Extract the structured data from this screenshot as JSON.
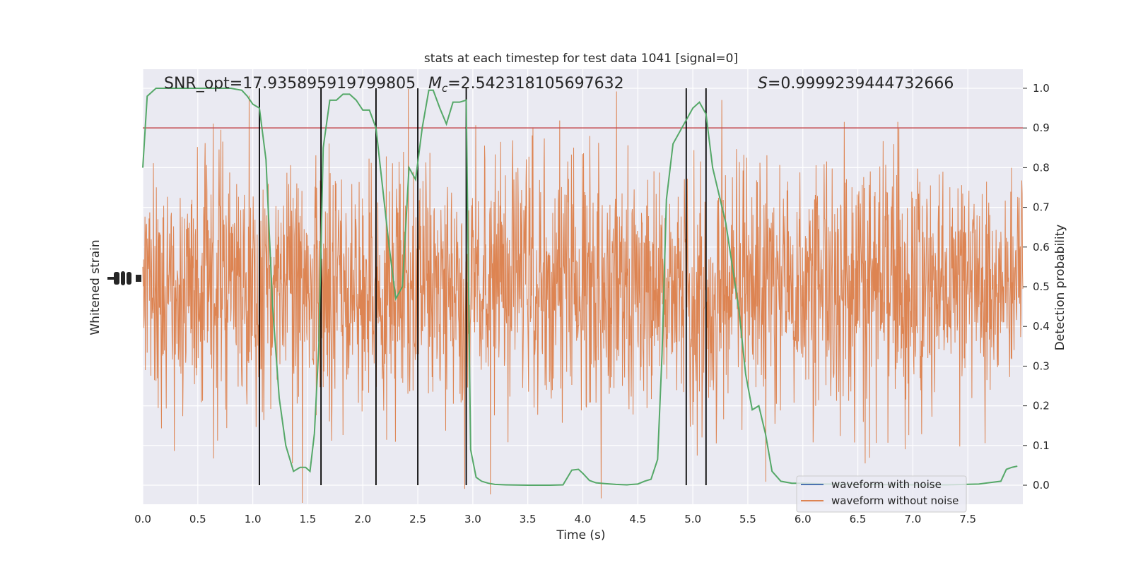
{
  "chart_data": {
    "type": "line",
    "title": "stats at each timestep for test data 1041 [signal=0]",
    "xlabel": "Time (s)",
    "ylabel_left": "Whitened strain",
    "ylabel_right": "Detection probability",
    "xlim": [
      0.0,
      8.0
    ],
    "xticks": [
      "0.0",
      "0.5",
      "1.0",
      "1.5",
      "2.0",
      "2.5",
      "3.0",
      "3.5",
      "4.0",
      "4.5",
      "5.0",
      "5.5",
      "6.0",
      "6.5",
      "7.0",
      "7.5"
    ],
    "ylim_right": [
      -0.048,
      1.048
    ],
    "yticks_right": [
      "0.0",
      "0.1",
      "0.2",
      "0.3",
      "0.4",
      "0.5",
      "0.6",
      "0.7",
      "0.8",
      "0.9",
      "1.0"
    ],
    "threshold": 0.9,
    "annotations": {
      "snr": "SNR_opt=17.935895919799805",
      "mc_symbol": "M",
      "mc_sub": "c",
      "mc_value": "=2.542318105697632",
      "s_symbol": "S",
      "s_value": "=0.9999239444732666"
    },
    "legend": {
      "position": "lower right",
      "entries": [
        "waveform with noise",
        "waveform without noise"
      ]
    },
    "vertical_lines": [
      1.06,
      1.62,
      2.12,
      2.5,
      2.94,
      4.94,
      5.12
    ],
    "detection_probability": {
      "x": [
        0.0,
        0.04,
        0.08,
        0.12,
        0.2,
        0.3,
        0.4,
        0.5,
        0.6,
        0.7,
        0.8,
        0.9,
        0.95,
        1.0,
        1.06,
        1.12,
        1.18,
        1.24,
        1.3,
        1.37,
        1.43,
        1.48,
        1.52,
        1.56,
        1.6,
        1.64,
        1.7,
        1.76,
        1.82,
        1.88,
        1.94,
        2.0,
        2.06,
        2.12,
        2.18,
        2.24,
        2.3,
        2.36,
        2.42,
        2.48,
        2.54,
        2.6,
        2.64,
        2.7,
        2.76,
        2.82,
        2.88,
        2.94,
        2.98,
        3.03,
        3.08,
        3.14,
        3.2,
        3.3,
        3.5,
        3.7,
        3.82,
        3.9,
        3.96,
        4.0,
        4.06,
        4.12,
        4.2,
        4.3,
        4.4,
        4.5,
        4.56,
        4.62,
        4.68,
        4.72,
        4.76,
        4.82,
        4.88,
        4.94,
        5.0,
        5.06,
        5.12,
        5.18,
        5.24,
        5.3,
        5.36,
        5.42,
        5.48,
        5.54,
        5.6,
        5.66,
        5.72,
        5.8,
        5.9,
        6.0,
        6.1,
        6.2,
        6.3,
        6.5,
        7.0,
        7.3,
        7.6,
        7.8,
        7.85,
        7.9,
        7.95
      ],
      "y": [
        0.8,
        0.98,
        0.99,
        1.0,
        1.0,
        1.0,
        1.0,
        1.0,
        1.0,
        1.0,
        1.0,
        0.995,
        0.98,
        0.96,
        0.95,
        0.82,
        0.45,
        0.22,
        0.1,
        0.035,
        0.045,
        0.045,
        0.035,
        0.13,
        0.35,
        0.85,
        0.97,
        0.97,
        0.985,
        0.985,
        0.97,
        0.945,
        0.945,
        0.9,
        0.75,
        0.6,
        0.47,
        0.5,
        0.8,
        0.77,
        0.9,
        0.995,
        0.995,
        0.95,
        0.91,
        0.965,
        0.965,
        0.97,
        0.09,
        0.02,
        0.01,
        0.005,
        0.002,
        0.001,
        0.0,
        0.0,
        0.001,
        0.038,
        0.04,
        0.03,
        0.012,
        0.006,
        0.004,
        0.002,
        0.001,
        0.003,
        0.01,
        0.015,
        0.065,
        0.33,
        0.72,
        0.86,
        0.89,
        0.92,
        0.95,
        0.965,
        0.935,
        0.8,
        0.73,
        0.66,
        0.55,
        0.44,
        0.28,
        0.19,
        0.2,
        0.13,
        0.035,
        0.01,
        0.005,
        0.005,
        0.004,
        0.003,
        0.003,
        0.002,
        0.001,
        0.001,
        0.003,
        0.01,
        0.04,
        0.045,
        0.048
      ]
    },
    "colors": {
      "background": "#ffffff",
      "plot_area": "#eaeaf2",
      "grid": "#ffffff",
      "noisy_waveform": "#dd8452",
      "clean_waveform": "#4c72b0",
      "probability": "#55a868",
      "threshold_line": "#c44e52",
      "vertical_line": "#000000",
      "text": "#262626"
    }
  }
}
